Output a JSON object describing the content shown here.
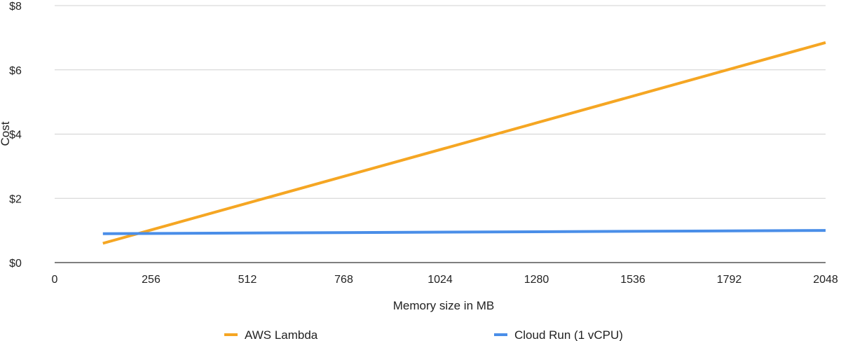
{
  "chart_data": {
    "type": "line",
    "title": "",
    "xlabel": "Memory size in MB",
    "ylabel": "Cost",
    "x_ticks": [
      "0",
      "256",
      "512",
      "768",
      "1024",
      "1280",
      "1536",
      "1792",
      "2048"
    ],
    "y_ticks": [
      "$0",
      "$2",
      "$4",
      "$6",
      "$8"
    ],
    "xlim": [
      0,
      2048
    ],
    "ylim": [
      0,
      8
    ],
    "grid": true,
    "legend_position": "bottom",
    "series": [
      {
        "name": "AWS Lambda",
        "color": "#F5A623",
        "x": [
          128,
          2048
        ],
        "y": [
          0.6,
          6.85
        ]
      },
      {
        "name": "Cloud Run (1 vCPU)",
        "color": "#4A8EE8",
        "x": [
          128,
          2048
        ],
        "y": [
          0.9,
          1.0
        ]
      }
    ]
  }
}
